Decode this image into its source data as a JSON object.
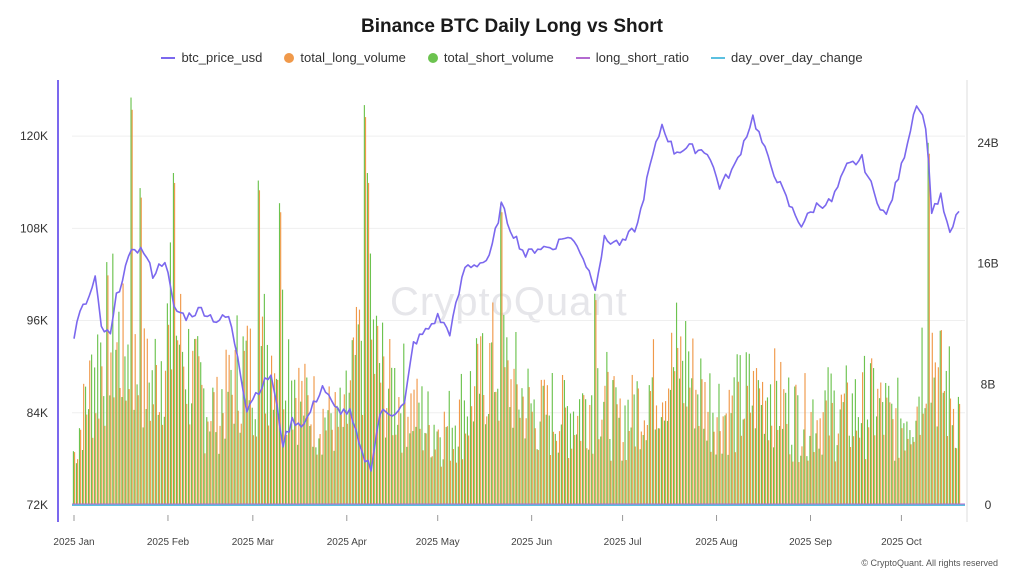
{
  "chart_data": {
    "type": "bar",
    "title": "Binance BTC Daily Long vs Short",
    "legend_position": "top-center",
    "grid": true,
    "x_ticks": [
      "2025 Jan",
      "2025 Feb",
      "2025 Mar",
      "2025 Apr",
      "2025 May",
      "2025 Jun",
      "2025 Jul",
      "2025 Aug",
      "2025 Sep",
      "2025 Oct"
    ],
    "y_left": {
      "ticks": [
        "72K",
        "84K",
        "96K",
        "108K",
        "120K"
      ],
      "range": [
        72000,
        126000
      ]
    },
    "y_right": {
      "ticks": [
        "0",
        "8B",
        "16B",
        "24B"
      ],
      "range": [
        0,
        27500000000
      ]
    },
    "date_range": [
      "2025-01-01",
      "2025-10-20"
    ],
    "series": [
      {
        "name": "btc_price_usd",
        "type": "line",
        "axis": "left",
        "color": "#7b68ee",
        "keypoints": [
          [
            "2025-01-01",
            94000
          ],
          [
            "2025-01-03",
            97000
          ],
          [
            "2025-01-06",
            99000
          ],
          [
            "2025-01-08",
            101500
          ],
          [
            "2025-01-10",
            95000
          ],
          [
            "2025-01-13",
            94000
          ],
          [
            "2025-01-15",
            99000
          ],
          [
            "2025-01-18",
            103000
          ],
          [
            "2025-01-21",
            105500
          ],
          [
            "2025-01-24",
            105000
          ],
          [
            "2025-01-27",
            102000
          ],
          [
            "2025-01-31",
            104000
          ],
          [
            "2025-02-03",
            97500
          ],
          [
            "2025-02-07",
            96500
          ],
          [
            "2025-02-12",
            97500
          ],
          [
            "2025-02-17",
            96000
          ],
          [
            "2025-02-21",
            96500
          ],
          [
            "2025-02-24",
            91500
          ],
          [
            "2025-02-27",
            84500
          ],
          [
            "2025-03-01",
            86000
          ],
          [
            "2025-03-04",
            87500
          ],
          [
            "2025-03-07",
            89000
          ],
          [
            "2025-03-11",
            80000
          ],
          [
            "2025-03-14",
            83000
          ],
          [
            "2025-03-18",
            82500
          ],
          [
            "2025-03-24",
            87500
          ],
          [
            "2025-03-28",
            84500
          ],
          [
            "2025-04-02",
            84000
          ],
          [
            "2025-04-06",
            78500
          ],
          [
            "2025-04-09",
            77000
          ],
          [
            "2025-04-12",
            84000
          ],
          [
            "2025-04-16",
            84000
          ],
          [
            "2025-04-20",
            85000
          ],
          [
            "2025-04-23",
            93000
          ],
          [
            "2025-04-28",
            95000
          ],
          [
            "2025-05-01",
            96500
          ],
          [
            "2025-05-05",
            94500
          ],
          [
            "2025-05-08",
            99500
          ],
          [
            "2025-05-10",
            103000
          ],
          [
            "2025-05-15",
            103500
          ],
          [
            "2025-05-18",
            104000
          ],
          [
            "2025-05-22",
            111000
          ],
          [
            "2025-05-25",
            108000
          ],
          [
            "2025-05-30",
            104500
          ],
          [
            "2025-06-03",
            105500
          ],
          [
            "2025-06-08",
            105500
          ],
          [
            "2025-06-12",
            107000
          ],
          [
            "2025-06-16",
            106000
          ],
          [
            "2025-06-22",
            100500
          ],
          [
            "2025-06-25",
            106500
          ],
          [
            "2025-07-01",
            106000
          ],
          [
            "2025-07-06",
            108500
          ],
          [
            "2025-07-10",
            116000
          ],
          [
            "2025-07-14",
            121500
          ],
          [
            "2025-07-18",
            118000
          ],
          [
            "2025-07-23",
            118500
          ],
          [
            "2025-07-29",
            118000
          ],
          [
            "2025-08-02",
            113500
          ],
          [
            "2025-08-07",
            116000
          ],
          [
            "2025-08-13",
            122500
          ],
          [
            "2025-08-18",
            117000
          ],
          [
            "2025-08-25",
            111000
          ],
          [
            "2025-08-29",
            108500
          ],
          [
            "2025-09-03",
            111000
          ],
          [
            "2025-09-08",
            111500
          ],
          [
            "2025-09-13",
            116000
          ],
          [
            "2025-09-18",
            117000
          ],
          [
            "2025-09-22",
            112500
          ],
          [
            "2025-09-26",
            109500
          ],
          [
            "2025-10-01",
            116000
          ],
          [
            "2025-10-06",
            124500
          ],
          [
            "2025-10-09",
            121500
          ],
          [
            "2025-10-11",
            110500
          ],
          [
            "2025-10-14",
            112000
          ],
          [
            "2025-10-17",
            107000
          ],
          [
            "2025-10-20",
            110500
          ]
        ]
      },
      {
        "name": "total_long_volume",
        "type": "bar",
        "axis": "right",
        "color": "#f0994a"
      },
      {
        "name": "total_short_volume",
        "type": "bar",
        "axis": "right",
        "color": "#6cc34f"
      },
      {
        "name": "long_short_ratio",
        "type": "line",
        "axis": "right",
        "color": "#b36ad0"
      },
      {
        "name": "day_over_day_change",
        "type": "line",
        "axis": "right",
        "color": "#5bc0e0"
      }
    ],
    "volume_keypoints_billions": [
      [
        "2025-01-01",
        4
      ],
      [
        "2025-01-06",
        9
      ],
      [
        "2025-01-13",
        13
      ],
      [
        "2025-01-20",
        11
      ],
      [
        "2025-01-27",
        9
      ],
      [
        "2025-02-03",
        14
      ],
      [
        "2025-02-10",
        9
      ],
      [
        "2025-02-17",
        7
      ],
      [
        "2025-02-24",
        10
      ],
      [
        "2025-03-03",
        11
      ],
      [
        "2025-03-10",
        13
      ],
      [
        "2025-03-17",
        8
      ],
      [
        "2025-03-24",
        7
      ],
      [
        "2025-03-31",
        6
      ],
      [
        "2025-04-07",
        14
      ],
      [
        "2025-04-14",
        9
      ],
      [
        "2025-04-21",
        8
      ],
      [
        "2025-04-28",
        6
      ],
      [
        "2025-05-05",
        6
      ],
      [
        "2025-05-12",
        8
      ],
      [
        "2025-05-19",
        11
      ],
      [
        "2025-05-26",
        9
      ],
      [
        "2025-06-02",
        7
      ],
      [
        "2025-06-09",
        7
      ],
      [
        "2025-06-16",
        7
      ],
      [
        "2025-06-23",
        9
      ],
      [
        "2025-06-30",
        6
      ],
      [
        "2025-07-07",
        8
      ],
      [
        "2025-07-14",
        10
      ],
      [
        "2025-07-21",
        11
      ],
      [
        "2025-07-28",
        8
      ],
      [
        "2025-08-04",
        7
      ],
      [
        "2025-08-11",
        8
      ],
      [
        "2025-08-18",
        9
      ],
      [
        "2025-08-25",
        7
      ],
      [
        "2025-09-01",
        7
      ],
      [
        "2025-09-08",
        7
      ],
      [
        "2025-09-15",
        7
      ],
      [
        "2025-09-22",
        8
      ],
      [
        "2025-09-29",
        6
      ],
      [
        "2025-10-06",
        8
      ],
      [
        "2025-10-10",
        14
      ],
      [
        "2025-10-13",
        10
      ],
      [
        "2025-10-20",
        7
      ]
    ],
    "volume_spikes_billions": [
      [
        "2025-01-20",
        27
      ],
      [
        "2025-01-23",
        21
      ],
      [
        "2025-02-03",
        22
      ],
      [
        "2025-03-03",
        21.5
      ],
      [
        "2025-03-10",
        20
      ],
      [
        "2025-04-07",
        26.5
      ],
      [
        "2025-04-08",
        22
      ],
      [
        "2025-05-22",
        20
      ],
      [
        "2025-06-22",
        14
      ],
      [
        "2025-10-10",
        24
      ]
    ]
  },
  "watermark": "CryptoQuant",
  "copyright": "© CryptoQuant. All rights reserved"
}
